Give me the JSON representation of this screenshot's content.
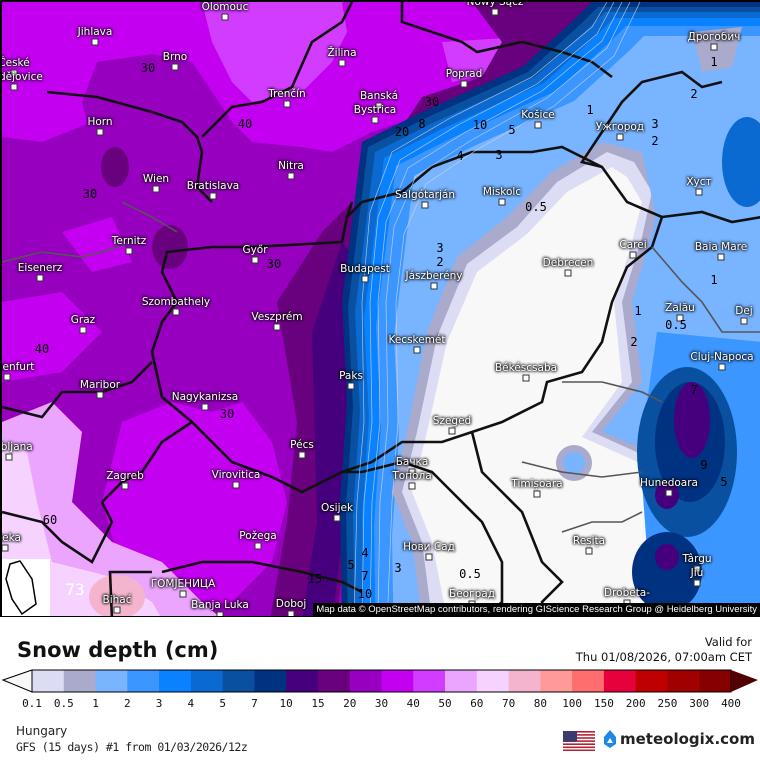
{
  "map": {
    "region_visible": "Hungary and surrounding countries",
    "attribution": "Map data © OpenStreetMap contributors, rendering GIScience Research Group @ Heidelberg University",
    "cities": [
      {
        "name": "Olomouc"
      },
      {
        "name": "Nowy Sącz"
      },
      {
        "name": "Jihlava"
      },
      {
        "name": "Brno"
      },
      {
        "name": "České"
      },
      {
        "name": "Budějovice"
      },
      {
        "name": "Žilina"
      },
      {
        "name": "Poprad"
      },
      {
        "name": "Trenčín"
      },
      {
        "name": "Banská"
      },
      {
        "name": "Bystrica"
      },
      {
        "name": "Horn"
      },
      {
        "name": "Wien"
      },
      {
        "name": "Bratislava"
      },
      {
        "name": "Nitra"
      },
      {
        "name": "Győr"
      },
      {
        "name": "Budapest"
      },
      {
        "name": "Salgótarján"
      },
      {
        "name": "Miskolc"
      },
      {
        "name": "Košice"
      },
      {
        "name": "Ужгород"
      },
      {
        "name": "Дрогобич"
      },
      {
        "name": "Хуст"
      },
      {
        "name": "Jászberény"
      },
      {
        "name": "Debrecen"
      },
      {
        "name": "Carei"
      },
      {
        "name": "Baia Mare"
      },
      {
        "name": "Zalău"
      },
      {
        "name": "Dej"
      },
      {
        "name": "Cluj-Napoca"
      },
      {
        "name": "Eisenerz"
      },
      {
        "name": "Ternitz"
      },
      {
        "name": "Szombathely"
      },
      {
        "name": "Graz"
      },
      {
        "name": "Veszprém"
      },
      {
        "name": "Kecskemét"
      },
      {
        "name": "Paks"
      },
      {
        "name": "Maribor"
      },
      {
        "name": "Nagykanizsa"
      },
      {
        "name": "Békéscsaba"
      },
      {
        "name": "Szeged"
      },
      {
        "name": "Ljubljana"
      },
      {
        "name": "Pécs"
      },
      {
        "name": "Zagreb"
      },
      {
        "name": "Virovitica"
      },
      {
        "name": "Бачка"
      },
      {
        "name": "Топола"
      },
      {
        "name": "Timișoara"
      },
      {
        "name": "Hunedoara"
      },
      {
        "name": "Osijek"
      },
      {
        "name": "Rijeka"
      },
      {
        "name": "Požega"
      },
      {
        "name": "Нови Сад"
      },
      {
        "name": "Reșița"
      },
      {
        "name": "Târgu"
      },
      {
        "name": "Jiu"
      },
      {
        "name": "Drobeta-"
      },
      {
        "name": "Београд"
      },
      {
        "name": "ГОМЈЕНИЦА"
      },
      {
        "name": "Bihać"
      },
      {
        "name": "Banja Luka"
      },
      {
        "name": "Doboj"
      },
      {
        "name": "Klagenfurt"
      },
      {
        "name": "Rab"
      }
    ],
    "contour_labels": [
      "30",
      "40",
      "30",
      "30",
      "40",
      "30",
      "30",
      "20",
      "8",
      "10",
      "5",
      "4",
      "3",
      "3",
      "2",
      "0.5",
      "1",
      "3",
      "2",
      "1",
      "2",
      "1",
      "0.5",
      "1",
      "2",
      "15",
      "60",
      "73",
      "5",
      "4",
      "7",
      "10",
      "3",
      "0.5",
      "7",
      "9",
      "5"
    ]
  },
  "legend": {
    "title": "Snow depth (cm)",
    "valid_label": "Valid for",
    "valid_time": "Thu 01/08/2026, 07:00am CET",
    "labels": [
      "0.1",
      "0.5",
      "1",
      "2",
      "3",
      "4",
      "5",
      "7",
      "10",
      "15",
      "20",
      "30",
      "40",
      "50",
      "60",
      "70",
      "80",
      "100",
      "150",
      "200",
      "250",
      "300",
      "400"
    ],
    "colors": [
      "#dcdcf5",
      "#aaaacc",
      "#78b4ff",
      "#3c96ff",
      "#0a82ff",
      "#0a6ad2",
      "#0a50a0",
      "#003282",
      "#46007d",
      "#69007d",
      "#9600be",
      "#c300f0",
      "#d23cff",
      "#eba5ff",
      "#f5d2ff",
      "#f5b4cd",
      "#ff9a9a",
      "#ff6e6e",
      "#e6003c",
      "#be0000",
      "#a00000",
      "#870000"
    ],
    "under_color": "#f8f8f8",
    "over_color": "#500000"
  },
  "footer": {
    "region": "Hungary",
    "model": "GFS (15 days) #1 from  01/03/2026/12z",
    "logo": "meteologix.com",
    "flag_icon": "us-flag-icon"
  }
}
